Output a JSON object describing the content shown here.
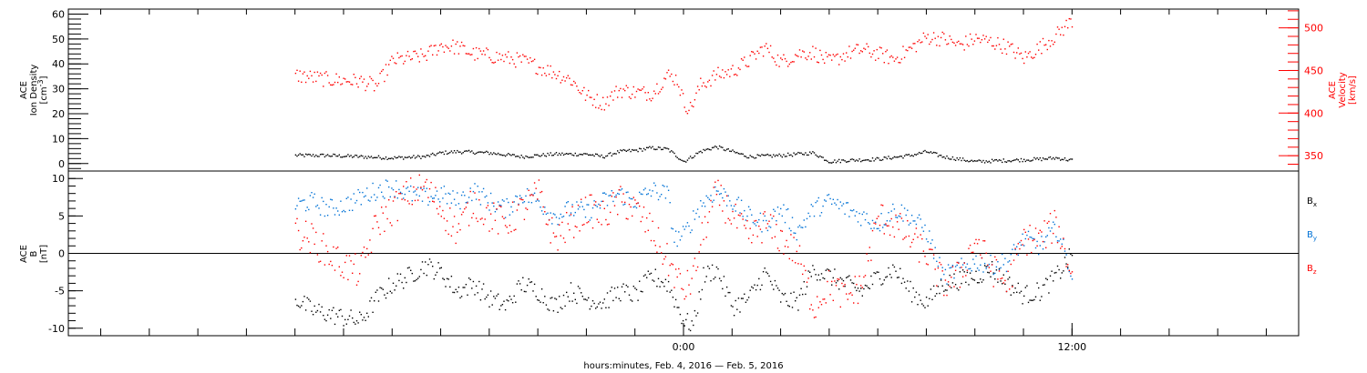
{
  "chart_data": [
    {
      "type": "scatter",
      "panel": "top",
      "left_axis": {
        "label_lines": [
          "ACE",
          "Ion Density"
        ],
        "unit_lines": [
          "[cm",
          "-3",
          "]"
        ],
        "ylim": [
          -3,
          62
        ],
        "ticks": [
          0,
          10,
          20,
          30,
          40,
          50,
          60
        ],
        "tick_labels": [
          "0",
          "10",
          "20",
          "30",
          "40",
          "50",
          "60"
        ],
        "color": "#000000"
      },
      "right_axis": {
        "label_lines": [
          "ACE",
          "Velocity"
        ],
        "unit": "[km/s]",
        "ylim": [
          332,
          522
        ],
        "ticks": [
          350,
          400,
          450,
          500
        ],
        "tick_labels": [
          "350",
          "400",
          "450",
          "500"
        ],
        "color": "#ff0000"
      },
      "series": [
        {
          "color": "#000000",
          "axis": "left",
          "x_hours": [
            -12,
            -11,
            -10,
            -9,
            -8,
            -7.5,
            -7,
            -6,
            -5,
            -4,
            -3,
            -2.5,
            -2,
            -1.5,
            -1,
            -0.5,
            0,
            0.5,
            1,
            1.5,
            2,
            3,
            4,
            4.5,
            5,
            6,
            7,
            7.5,
            8,
            9,
            10,
            11,
            11.5,
            12
          ],
          "y": [
            3.5,
            3.5,
            3,
            2.5,
            3,
            4.5,
            5,
            4.5,
            3,
            4,
            4,
            3,
            5,
            5.5,
            6.5,
            6,
            1,
            5,
            7,
            5,
            3,
            3.5,
            4.5,
            1,
            1.5,
            2,
            3.5,
            5,
            3,
            1,
            1.5,
            2,
            2.5,
            1.5
          ]
        },
        {
          "color": "#ff0000",
          "axis": "right",
          "x_hours": [
            -12,
            -11,
            -10,
            -9.5,
            -9,
            -8,
            -7.5,
            -7,
            -6.5,
            -6,
            -5.5,
            -5,
            -4.5,
            -4,
            -3.5,
            -3,
            -2.5,
            -2,
            -1.5,
            -1,
            -0.5,
            -0.2,
            0,
            0.2,
            0.5,
            1,
            1.5,
            2,
            2.5,
            3,
            3.5,
            4,
            4.5,
            5,
            5.5,
            6,
            6.5,
            7,
            7.5,
            8,
            8.5,
            9,
            9.5,
            10,
            10.5,
            11,
            11.5,
            12
          ],
          "y": [
            445,
            440,
            438,
            432,
            462,
            468,
            480,
            478,
            470,
            468,
            465,
            462,
            455,
            448,
            440,
            420,
            412,
            428,
            425,
            424,
            445,
            440,
            412,
            406,
            433,
            445,
            450,
            462,
            478,
            460,
            470,
            472,
            460,
            470,
            475,
            470,
            464,
            476,
            490,
            488,
            480,
            488,
            484,
            478,
            465,
            478,
            492,
            510
          ]
        }
      ]
    },
    {
      "type": "scatter",
      "panel": "bottom",
      "axis": {
        "label_lines": [
          "ACE",
          "B"
        ],
        "unit": "[nT]",
        "ylim": [
          -11,
          11
        ],
        "ticks": [
          -10,
          -5,
          0,
          5,
          10
        ],
        "tick_labels": [
          "-10",
          "-5",
          "0",
          "5",
          "10"
        ]
      },
      "legend_position": "right",
      "series": [
        {
          "name": "B",
          "sub": "x",
          "color": "#000000",
          "x_hours": [
            -12,
            -11.5,
            -11,
            -10.5,
            -10,
            -9.5,
            -9,
            -8.5,
            -8,
            -7.5,
            -7,
            -6.5,
            -6,
            -5.5,
            -5,
            -4.5,
            -4,
            -3.5,
            -3,
            -2.5,
            -2,
            -1.5,
            -1,
            -0.5,
            0,
            0.3,
            0.6,
            1,
            1.5,
            2,
            2.5,
            3,
            3.5,
            4,
            4.5,
            5,
            5.5,
            6,
            6.5,
            7,
            7.5,
            8,
            8.5,
            9,
            9.5,
            10,
            10.5,
            11,
            11.5,
            12
          ],
          "y": [
            -6,
            -7.5,
            -8,
            -8.5,
            -9,
            -6,
            -4,
            -3,
            -1.5,
            -2.5,
            -5,
            -4,
            -6,
            -7,
            -4,
            -5,
            -7,
            -5,
            -6,
            -6.5,
            -5,
            -5.5,
            -3,
            -4,
            -9,
            -9.5,
            -3,
            -2,
            -7,
            -6,
            -2.5,
            -6,
            -6.5,
            -2,
            -3,
            -4,
            -5,
            -3,
            -2,
            -5,
            -6.5,
            -4,
            -3.5,
            -3,
            -2,
            -4,
            -5.5,
            -5,
            -3,
            0
          ]
        },
        {
          "name": "B",
          "sub": "y",
          "color": "#0072d6",
          "x_hours": [
            -12,
            -11.5,
            -11,
            -10.5,
            -10,
            -9.5,
            -9,
            -8.5,
            -8,
            -7.5,
            -7,
            -6.5,
            -6,
            -5.5,
            -5,
            -4.5,
            -4,
            -3.5,
            -3,
            -2.5,
            -2,
            -1.5,
            -1,
            -0.5,
            -0.3,
            0,
            0.5,
            1,
            1.5,
            2,
            2.5,
            3,
            3.5,
            4,
            4.5,
            5,
            5.5,
            6,
            6.5,
            7,
            7.5,
            8,
            8.5,
            9,
            9.5,
            10,
            10.5,
            11,
            11.5,
            12
          ],
          "y": [
            6.5,
            7,
            6,
            6.5,
            7.5,
            8.5,
            9,
            8,
            7.5,
            8,
            7,
            8.5,
            7,
            6,
            8,
            7,
            5,
            6,
            5.5,
            7,
            8,
            7,
            8.5,
            8,
            2,
            2.5,
            6.5,
            8.5,
            7,
            5,
            4,
            6,
            3,
            6,
            7,
            6,
            5,
            4,
            6,
            5,
            3,
            -3,
            -2,
            -1,
            -1.5,
            -1,
            2,
            1,
            3.5,
            -3
          ]
        },
        {
          "name": "B",
          "sub": "z",
          "color": "#ff0000",
          "x_hours": [
            -12,
            -11.5,
            -11,
            -10.5,
            -10,
            -9.5,
            -9,
            -8.5,
            -8,
            -7.5,
            -7,
            -6.5,
            -6,
            -5.5,
            -5,
            -4.5,
            -4,
            -3.5,
            -3,
            -2.5,
            -2,
            -1.5,
            -1,
            -0.5,
            0,
            0.3,
            0.6,
            1,
            1.5,
            2,
            2.5,
            3,
            3.5,
            4,
            4.5,
            5,
            5.5,
            6,
            6.5,
            7,
            7.5,
            8,
            8.5,
            9,
            9.5,
            10,
            10.5,
            11,
            11.5,
            12
          ],
          "y": [
            3,
            2,
            0,
            -1.5,
            -2.5,
            4,
            6,
            8,
            9,
            6,
            3,
            7,
            5,
            4,
            6,
            8,
            2,
            4,
            6,
            5,
            7,
            6,
            3,
            -1,
            -5,
            -3,
            3,
            8,
            5,
            2,
            4,
            2,
            0,
            -7,
            -4,
            -6,
            -4,
            5,
            4,
            2,
            0,
            -4,
            -3,
            2,
            -2,
            -4,
            2,
            2,
            4,
            -3
          ]
        }
      ]
    }
  ],
  "x_axis": {
    "range_hours": [
      -19,
      19
    ],
    "major_ticks_hours": [
      0,
      12
    ],
    "tick_labels": [
      "0:00",
      "12:00"
    ],
    "minor_step_hours": 1.5,
    "title": "hours:minutes, Feb.  4, 2016 — Feb.  5, 2016"
  }
}
